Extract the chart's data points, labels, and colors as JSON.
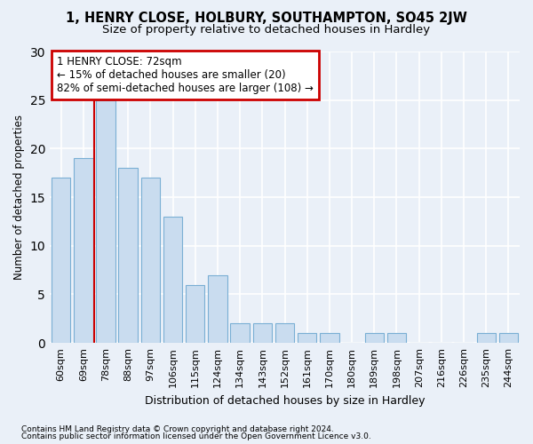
{
  "title1": "1, HENRY CLOSE, HOLBURY, SOUTHAMPTON, SO45 2JW",
  "title2": "Size of property relative to detached houses in Hardley",
  "xlabel": "Distribution of detached houses by size in Hardley",
  "ylabel": "Number of detached properties",
  "categories": [
    "60sqm",
    "69sqm",
    "78sqm",
    "88sqm",
    "97sqm",
    "106sqm",
    "115sqm",
    "124sqm",
    "134sqm",
    "143sqm",
    "152sqm",
    "161sqm",
    "170sqm",
    "180sqm",
    "189sqm",
    "198sqm",
    "207sqm",
    "216sqm",
    "226sqm",
    "235sqm",
    "244sqm"
  ],
  "values": [
    17,
    19,
    25,
    18,
    17,
    13,
    6,
    7,
    2,
    2,
    2,
    1,
    1,
    0,
    1,
    1,
    0,
    0,
    0,
    1,
    1
  ],
  "bar_color": "#c9dcef",
  "bar_edge_color": "#7aafd4",
  "annotation_line1": "1 HENRY CLOSE: 72sqm",
  "annotation_line2": "← 15% of detached houses are smaller (20)",
  "annotation_line3": "82% of semi-detached houses are larger (108) →",
  "annotation_box_color": "#ffffff",
  "annotation_box_edge": "#cc0000",
  "vline_color": "#cc0000",
  "ylim": [
    0,
    30
  ],
  "footnote1": "Contains HM Land Registry data © Crown copyright and database right 2024.",
  "footnote2": "Contains public sector information licensed under the Open Government Licence v3.0.",
  "bg_color": "#eaf0f8",
  "grid_color": "#ffffff",
  "title1_fontsize": 10.5,
  "title2_fontsize": 9.5,
  "tick_fontsize": 8,
  "ylabel_fontsize": 8.5,
  "xlabel_fontsize": 9,
  "annot_fontsize": 8.5,
  "footnote_fontsize": 6.5
}
